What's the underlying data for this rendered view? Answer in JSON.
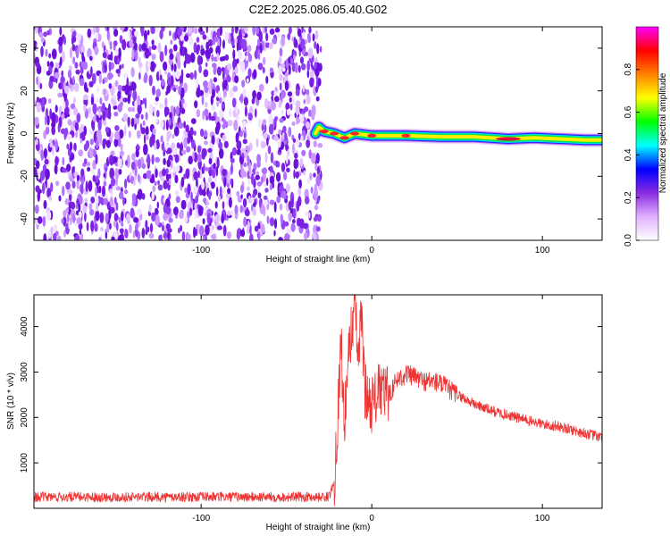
{
  "title": "C2E2.2025.086.05.40.G02",
  "chart_data": [
    {
      "type": "heatmap",
      "xlabel": "Height of straight line (km)",
      "ylabel": "Frequency (Hz)",
      "xlim": [
        -198,
        135
      ],
      "ylim": [
        -50,
        50
      ],
      "xticks": [
        -100,
        0,
        100
      ],
      "xtick_labels": [
        "-100",
        "0",
        "100"
      ],
      "yticks": [
        -40,
        -20,
        0,
        20,
        40
      ],
      "ytick_labels": [
        "-40",
        "-20",
        "0",
        "20",
        "40"
      ],
      "noise_region_x": [
        -198,
        -33
      ],
      "signal_track": [
        {
          "x": -33,
          "y": 0,
          "amp": 0.45
        },
        {
          "x": -31,
          "y": 3,
          "amp": 0.5
        },
        {
          "x": -28,
          "y": 1,
          "amp": 0.75
        },
        {
          "x": -22,
          "y": 0,
          "amp": 0.85
        },
        {
          "x": -16,
          "y": -2,
          "amp": 0.8
        },
        {
          "x": -10,
          "y": 0,
          "amp": 0.8
        },
        {
          "x": 0,
          "y": -1,
          "amp": 0.85
        },
        {
          "x": 20,
          "y": -1,
          "amp": 0.8
        },
        {
          "x": 40,
          "y": -1.5,
          "amp": 0.55
        },
        {
          "x": 60,
          "y": -1.5,
          "amp": 0.5
        },
        {
          "x": 80,
          "y": -2.5,
          "amp": 0.95
        },
        {
          "x": 95,
          "y": -2,
          "amp": 0.5
        },
        {
          "x": 110,
          "y": -2.5,
          "amp": 0.55
        },
        {
          "x": 125,
          "y": -3,
          "amp": 0.6
        },
        {
          "x": 135,
          "y": -3,
          "amp": 0.6
        }
      ],
      "colorbar": {
        "label": "Normalized spectral amplitude",
        "range": [
          0,
          1
        ],
        "ticks": [
          0,
          0.2,
          0.4,
          0.6,
          0.8
        ],
        "tick_labels": [
          "0.0",
          "0.2",
          "0.4",
          "0.6",
          "0.8"
        ],
        "colors": [
          "#ffffff",
          "#e0b0ff",
          "#8a2be2",
          "#0000ff",
          "#00ffff",
          "#00ff00",
          "#ffff00",
          "#ff8000",
          "#ff0000",
          "#ff00ff"
        ]
      }
    },
    {
      "type": "line",
      "xlabel": "Height of straight line (km)",
      "ylabel": "SNR (10 * v/v)",
      "xlim": [
        -198,
        135
      ],
      "ylim": [
        0,
        4700
      ],
      "xticks": [
        -100,
        0,
        100
      ],
      "xtick_labels": [
        "-100",
        "0",
        "100"
      ],
      "yticks": [
        1000,
        2000,
        3000,
        4000
      ],
      "ytick_labels": [
        "1000",
        "2000",
        "3000",
        "4000"
      ],
      "color": "#ee3333",
      "series": [
        {
          "x": [
            -198,
            -150,
            -100,
            -50,
            -25,
            -22,
            -20,
            -18,
            -16,
            -14,
            -12,
            -10,
            -8,
            -6,
            -4,
            -2,
            0,
            5,
            10,
            15,
            20,
            25,
            30,
            35,
            40,
            50,
            60,
            70,
            80,
            90,
            100,
            110,
            120,
            130,
            135
          ],
          "y": [
            250,
            250,
            250,
            250,
            250,
            600,
            2000,
            3700,
            1800,
            3200,
            3900,
            4550,
            3300,
            4200,
            2600,
            2400,
            2300,
            2600,
            2500,
            2850,
            2950,
            2900,
            2800,
            2800,
            2750,
            2500,
            2300,
            2150,
            2050,
            1950,
            1850,
            1800,
            1700,
            1600,
            1550
          ]
        }
      ]
    }
  ]
}
